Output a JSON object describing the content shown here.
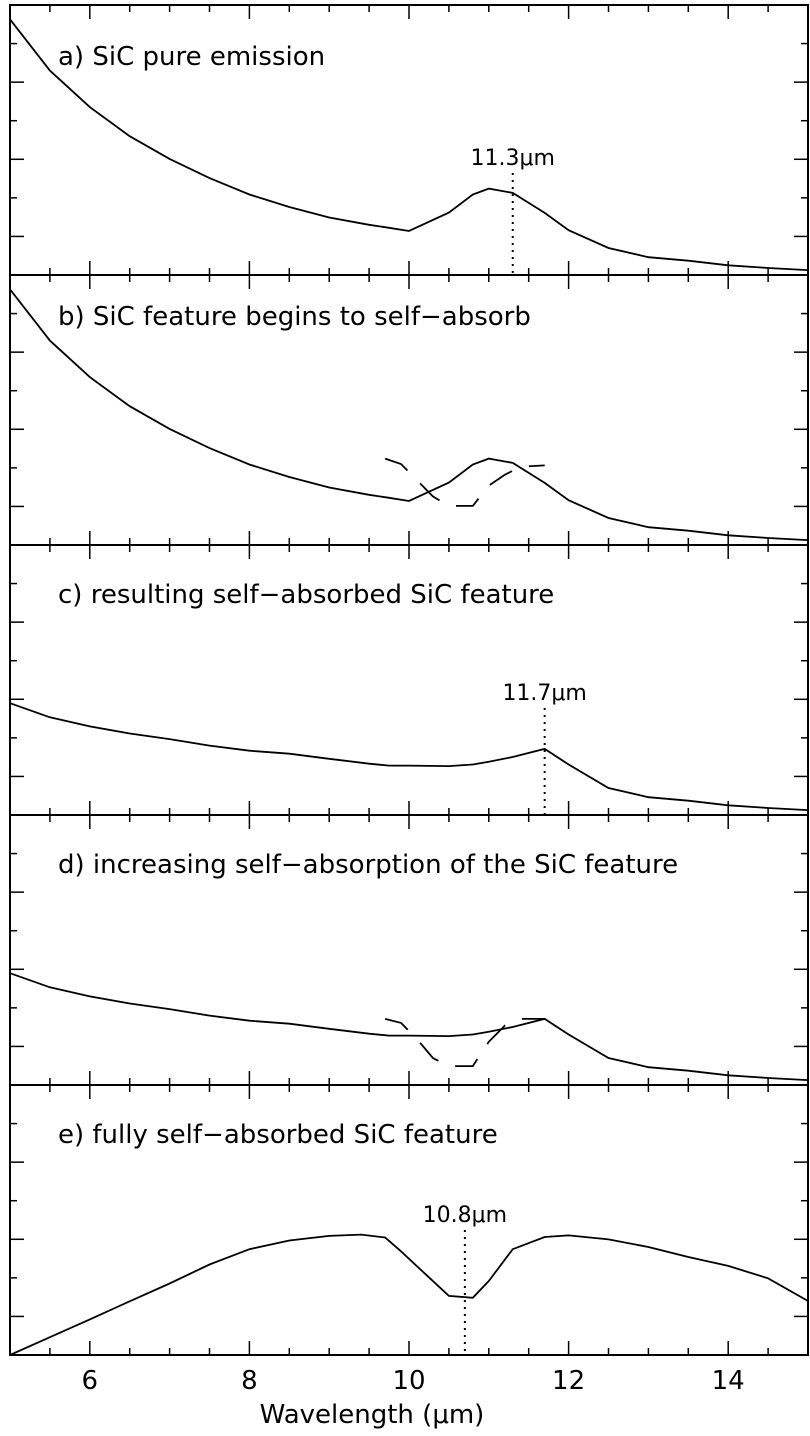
{
  "chart_data": {
    "type": "line",
    "xlabel": "Wavelength (μm)",
    "xlim": [
      5,
      15
    ],
    "x_ticks": [
      "6",
      "8",
      "10",
      "12",
      "14"
    ],
    "panels": [
      {
        "id": "a",
        "title": "a) SiC pure emission",
        "marker": {
          "x": 11.3,
          "label": "11.3μm"
        },
        "ylim": [
          0,
          1
        ],
        "series": [
          {
            "style": "solid",
            "x": [
              5,
              5.5,
              6,
              6.5,
              7,
              7.5,
              8,
              8.5,
              9,
              9.5,
              9.75,
              10,
              10.5,
              10.8,
              11,
              11.3,
              11.7,
              12,
              12.5,
              13,
              13.5,
              14,
              14.5,
              15
            ],
            "y": [
              0.947,
              0.757,
              0.622,
              0.514,
              0.43,
              0.359,
              0.298,
              0.252,
              0.213,
              0.186,
              0.175,
              0.163,
              0.231,
              0.298,
              0.32,
              0.304,
              0.23,
              0.166,
              0.1,
              0.066,
              0.053,
              0.036,
              0.026,
              0.018
            ]
          }
        ]
      },
      {
        "id": "b",
        "title": "b) SiC feature begins to self−absorb",
        "ylim": [
          0,
          1
        ],
        "series": [
          {
            "style": "solid",
            "x": [
              5,
              5.5,
              6,
              6.5,
              7,
              7.5,
              8,
              8.5,
              9,
              9.5,
              9.75,
              10,
              10.5,
              10.8,
              11,
              11.3,
              11.7,
              12,
              12.5,
              13,
              13.5,
              14,
              14.5,
              15
            ],
            "y": [
              0.947,
              0.757,
              0.622,
              0.514,
              0.43,
              0.359,
              0.298,
              0.252,
              0.213,
              0.186,
              0.175,
              0.163,
              0.231,
              0.298,
              0.32,
              0.304,
              0.23,
              0.166,
              0.1,
              0.066,
              0.053,
              0.036,
              0.026,
              0.018
            ]
          },
          {
            "style": "dashed",
            "x": [
              9.7,
              9.9,
              10.1,
              10.3,
              10.5,
              10.8,
              11,
              11.2,
              11.4,
              11.7
            ],
            "y": [
              0.32,
              0.3,
              0.24,
              0.18,
              0.145,
              0.145,
              0.22,
              0.26,
              0.29,
              0.295
            ]
          }
        ]
      },
      {
        "id": "c",
        "title": "c) resulting self−absorbed SiC feature",
        "marker": {
          "x": 11.7,
          "label": "11.7μm"
        },
        "ylim": [
          0,
          1
        ],
        "series": [
          {
            "style": "solid",
            "x": [
              5,
              5.5,
              6,
              6.5,
              7,
              7.5,
              8,
              8.5,
              9,
              9.5,
              9.75,
              10,
              10.5,
              10.8,
              11,
              11.3,
              11.7,
              12,
              12.5,
              13,
              13.5,
              14,
              14.5,
              15
            ],
            "y": [
              0.414,
              0.362,
              0.328,
              0.302,
              0.281,
              0.257,
              0.238,
              0.227,
              0.208,
              0.19,
              0.183,
              0.183,
              0.181,
              0.187,
              0.197,
              0.215,
              0.245,
              0.187,
              0.1,
              0.066,
              0.053,
              0.036,
              0.026,
              0.018
            ]
          }
        ]
      },
      {
        "id": "d",
        "title": "d) increasing self−absorption of the SiC feature",
        "ylim": [
          0,
          1
        ],
        "series": [
          {
            "style": "solid",
            "x": [
              5,
              5.5,
              6,
              6.5,
              7,
              7.5,
              8,
              8.5,
              9,
              9.5,
              9.75,
              10,
              10.5,
              10.8,
              11,
              11.3,
              11.7,
              12,
              12.5,
              13,
              13.5,
              14,
              14.5,
              15
            ],
            "y": [
              0.414,
              0.362,
              0.328,
              0.302,
              0.281,
              0.257,
              0.238,
              0.227,
              0.208,
              0.19,
              0.183,
              0.183,
              0.181,
              0.187,
              0.197,
              0.215,
              0.245,
              0.187,
              0.1,
              0.066,
              0.053,
              0.036,
              0.026,
              0.018
            ]
          },
          {
            "style": "dashed",
            "x": [
              9.7,
              9.9,
              10.1,
              10.3,
              10.5,
              10.8,
              11,
              11.2,
              11.4,
              11.7
            ],
            "y": [
              0.245,
              0.23,
              0.17,
              0.1,
              0.07,
              0.07,
              0.16,
              0.22,
              0.245,
              0.245
            ]
          }
        ]
      },
      {
        "id": "e",
        "title": "e) fully self−absorbed SiC feature",
        "marker": {
          "x": 10.7,
          "label": "10.8μm"
        },
        "ylim": [
          0,
          1
        ],
        "series": [
          {
            "style": "solid",
            "x": [
              5,
              5.5,
              6,
              6.5,
              7,
              7.5,
              8,
              8.5,
              9,
              9.4,
              9.7,
              9.9,
              10.2,
              10.5,
              10.8,
              11,
              11.3,
              11.7,
              12,
              12.5,
              13,
              13.5,
              14,
              14.5,
              15
            ],
            "y": [
              0.0,
              0.066,
              0.132,
              0.199,
              0.265,
              0.335,
              0.392,
              0.424,
              0.441,
              0.446,
              0.435,
              0.384,
              0.301,
              0.219,
              0.212,
              0.274,
              0.392,
              0.437,
              0.443,
              0.428,
              0.4,
              0.363,
              0.33,
              0.284,
              0.2
            ]
          }
        ]
      }
    ]
  }
}
